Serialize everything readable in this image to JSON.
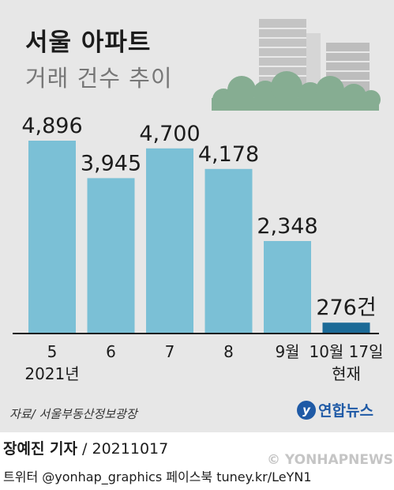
{
  "header": {
    "title": "서울 아파트",
    "subtitle": "거래 건수 추이"
  },
  "chart_data": {
    "type": "bar",
    "categories": [
      "5",
      "6",
      "7",
      "8",
      "9월",
      "10월 17일"
    ],
    "category_sublabels": [
      "2021년",
      "",
      "",
      "",
      "",
      "현재"
    ],
    "values": [
      4896,
      3945,
      4700,
      4178,
      2348,
      276
    ],
    "value_labels": [
      "4,896",
      "3,945",
      "4,700",
      "4,178",
      "2,348",
      "276건"
    ],
    "ylim": [
      0,
      4896
    ],
    "colors": {
      "bar": "#7bc0d6",
      "highlight_bar": "#1b6a97",
      "baseline": "#1c1c1c"
    },
    "highlight_index": 5,
    "grid": false
  },
  "footer": {
    "source": "자료/ 서울부동산정보광장",
    "logo_mark": "y",
    "logo_text": "연합뉴스",
    "reporter": "장예진 기자",
    "date": " / 20211017",
    "social": "트위터 @yonhap_graphics  페이스북 tuney.kr/LeYN1",
    "watermark": "© YONHAPNEWS"
  }
}
